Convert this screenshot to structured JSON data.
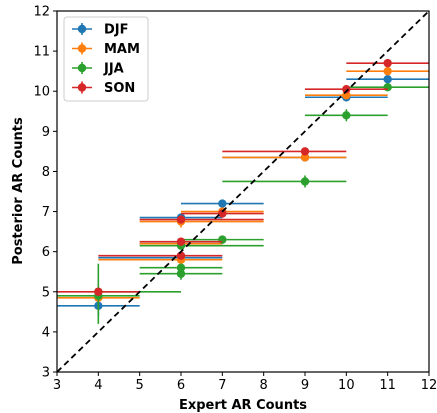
{
  "chart_data": {
    "type": "scatter",
    "title": "",
    "xlabel": "Expert AR Counts",
    "ylabel": "Posterior AR Counts",
    "xlim": [
      3,
      12
    ],
    "ylim": [
      3,
      12
    ],
    "xticks": [
      "3",
      "4",
      "5",
      "6",
      "7",
      "8",
      "9",
      "10",
      "11",
      "12"
    ],
    "yticks": [
      "3",
      "4",
      "5",
      "6",
      "7",
      "8",
      "9",
      "10",
      "11",
      "12"
    ],
    "grid": false,
    "legend_position": "top-left",
    "reference_line": {
      "style": "dashed",
      "color": "#000000",
      "from": [
        3,
        3
      ],
      "to": [
        12,
        12
      ]
    },
    "series": [
      {
        "name": "DJF",
        "color": "#1f77b4",
        "points": [
          {
            "x": 4,
            "y": 4.65,
            "xlo": 3.0,
            "xhi": 5.0,
            "ylo": 4.4,
            "yhi": 4.9
          },
          {
            "x": 6,
            "y": 5.85,
            "xlo": 4.0,
            "xhi": 7.0,
            "ylo": 5.75,
            "yhi": 5.95
          },
          {
            "x": 6,
            "y": 6.2,
            "xlo": 5.0,
            "xhi": 7.0,
            "ylo": 6.1,
            "yhi": 6.3
          },
          {
            "x": 6,
            "y": 6.85,
            "xlo": 5.0,
            "xhi": 7.0,
            "ylo": 6.75,
            "yhi": 6.95
          },
          {
            "x": 7,
            "y": 7.2,
            "xlo": 6.0,
            "xhi": 8.0,
            "ylo": 7.1,
            "yhi": 7.3
          },
          {
            "x": 9,
            "y": 8.35,
            "xlo": 7.0,
            "xhi": 10.0,
            "ylo": 8.25,
            "yhi": 8.45
          },
          {
            "x": 10,
            "y": 9.85,
            "xlo": 9.0,
            "xhi": 11.0,
            "ylo": 9.75,
            "yhi": 9.95
          },
          {
            "x": 11,
            "y": 10.3,
            "xlo": 10.0,
            "xhi": 12.0,
            "ylo": 10.2,
            "yhi": 10.4
          }
        ]
      },
      {
        "name": "MAM",
        "color": "#ff7f0e",
        "points": [
          {
            "x": 4,
            "y": 4.85,
            "xlo": 3.0,
            "xhi": 5.0,
            "ylo": 4.75,
            "yhi": 4.95
          },
          {
            "x": 6,
            "y": 5.8,
            "xlo": 4.0,
            "xhi": 7.0,
            "ylo": 5.7,
            "yhi": 5.9
          },
          {
            "x": 6,
            "y": 6.2,
            "xlo": 5.0,
            "xhi": 7.0,
            "ylo": 6.1,
            "yhi": 6.3
          },
          {
            "x": 6,
            "y": 6.75,
            "xlo": 5.0,
            "xhi": 8.0,
            "ylo": 6.6,
            "yhi": 6.9
          },
          {
            "x": 7,
            "y": 7.0,
            "xlo": 6.0,
            "xhi": 8.0,
            "ylo": 6.9,
            "yhi": 7.1
          },
          {
            "x": 9,
            "y": 8.35,
            "xlo": 7.0,
            "xhi": 10.0,
            "ylo": 8.25,
            "yhi": 8.45
          },
          {
            "x": 10,
            "y": 9.9,
            "xlo": 9.0,
            "xhi": 11.0,
            "ylo": 9.8,
            "yhi": 10.0
          },
          {
            "x": 11,
            "y": 10.5,
            "xlo": 10.0,
            "xhi": 12.0,
            "ylo": 10.4,
            "yhi": 10.6
          }
        ]
      },
      {
        "name": "JJA",
        "color": "#2ca02c",
        "points": [
          {
            "x": 4,
            "y": 4.9,
            "xlo": 3.0,
            "xhi": 5.0,
            "ylo": 4.2,
            "yhi": 5.7
          },
          {
            "x": 4,
            "y": 5.0,
            "xlo": 4.0,
            "xhi": 6.0,
            "ylo": 4.9,
            "yhi": 5.1
          },
          {
            "x": 6,
            "y": 5.45,
            "xlo": 5.0,
            "xhi": 7.0,
            "ylo": 5.3,
            "yhi": 5.6
          },
          {
            "x": 6,
            "y": 5.6,
            "xlo": 5.0,
            "xhi": 7.0,
            "ylo": 5.5,
            "yhi": 5.7
          },
          {
            "x": 6,
            "y": 6.15,
            "xlo": 5.0,
            "xhi": 8.0,
            "ylo": 6.05,
            "yhi": 6.25
          },
          {
            "x": 7,
            "y": 6.3,
            "xlo": 6.0,
            "xhi": 8.0,
            "ylo": 6.2,
            "yhi": 6.4
          },
          {
            "x": 9,
            "y": 7.75,
            "xlo": 7.0,
            "xhi": 10.0,
            "ylo": 7.6,
            "yhi": 7.9
          },
          {
            "x": 10,
            "y": 9.4,
            "xlo": 9.0,
            "xhi": 11.0,
            "ylo": 9.25,
            "yhi": 9.55
          },
          {
            "x": 11,
            "y": 10.1,
            "xlo": 10.0,
            "xhi": 12.0,
            "ylo": 10.0,
            "yhi": 10.2
          }
        ]
      },
      {
        "name": "SON",
        "color": "#d62728",
        "points": [
          {
            "x": 4,
            "y": 5.0,
            "xlo": 3.0,
            "xhi": 5.0,
            "ylo": 4.9,
            "yhi": 5.1
          },
          {
            "x": 6,
            "y": 5.9,
            "xlo": 4.0,
            "xhi": 7.0,
            "ylo": 5.8,
            "yhi": 6.0
          },
          {
            "x": 6,
            "y": 6.25,
            "xlo": 5.0,
            "xhi": 7.0,
            "ylo": 6.15,
            "yhi": 6.35
          },
          {
            "x": 6,
            "y": 6.8,
            "xlo": 5.0,
            "xhi": 8.0,
            "ylo": 6.7,
            "yhi": 6.9
          },
          {
            "x": 7,
            "y": 6.95,
            "xlo": 6.0,
            "xhi": 8.0,
            "ylo": 6.85,
            "yhi": 7.05
          },
          {
            "x": 9,
            "y": 8.5,
            "xlo": 7.0,
            "xhi": 10.0,
            "ylo": 8.4,
            "yhi": 8.6
          },
          {
            "x": 10,
            "y": 10.05,
            "xlo": 9.0,
            "xhi": 11.0,
            "ylo": 9.95,
            "yhi": 10.15
          },
          {
            "x": 11,
            "y": 10.7,
            "xlo": 10.0,
            "xhi": 12.0,
            "ylo": 10.6,
            "yhi": 10.8
          }
        ]
      }
    ]
  }
}
